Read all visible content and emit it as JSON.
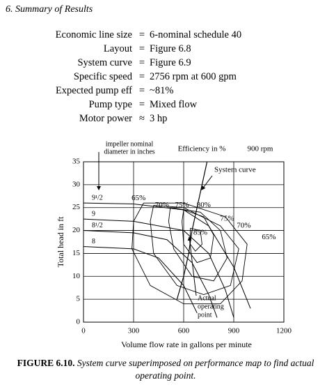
{
  "section": "6. Summary of Results",
  "summary": [
    {
      "label": "Economic line size",
      "sign": "=",
      "value": "6-nominal schedule 40"
    },
    {
      "label": "Layout",
      "sign": "=",
      "value": "Figure 6.8"
    },
    {
      "label": "System curve",
      "sign": "=",
      "value": "Figure 6.9"
    },
    {
      "label": "Specific speed",
      "sign": "=",
      "value": "2756 rpm at 600 gpm"
    },
    {
      "label": "Expected pump eff",
      "sign": "=",
      "value": "~81%"
    },
    {
      "label": "Pump type",
      "sign": "=",
      "value": "Mixed flow"
    },
    {
      "label": "Motor power",
      "sign": "≈",
      "value": "3 hp"
    }
  ],
  "chart_data": {
    "type": "line",
    "xlabel": "Volume flow rate in gallons per minute",
    "ylabel": "Total head in ft",
    "xlim": [
      0,
      1200
    ],
    "ylim": [
      0,
      35
    ],
    "xticks": [
      0,
      300,
      600,
      900,
      1200
    ],
    "yticks": [
      0,
      5,
      10,
      15,
      20,
      25,
      30,
      35
    ],
    "grid": true,
    "color": "#000000",
    "impeller_note": [
      "impeller nominal",
      "diameter in inches"
    ],
    "efficiency_note": "Efficiency in %",
    "speed_note": "900 rpm",
    "system_note": "System curve",
    "operating_note": [
      "Actual",
      "operating",
      "point"
    ],
    "series": [
      {
        "name": "9¹/2",
        "x": [
          0,
          300,
          600,
          750,
          900,
          1000
        ],
        "values": [
          26,
          25.8,
          24.5,
          21,
          12,
          3
        ]
      },
      {
        "name": "9",
        "x": [
          0,
          300,
          600,
          750,
          850,
          900
        ],
        "values": [
          22.5,
          22,
          20,
          15,
          7,
          1
        ]
      },
      {
        "name": "8¹/2",
        "x": [
          0,
          300,
          500,
          650,
          750,
          800
        ],
        "values": [
          20,
          19.5,
          18,
          13,
          6,
          1
        ]
      },
      {
        "name": "8",
        "x": [
          0,
          300,
          450,
          600,
          680
        ],
        "values": [
          16.5,
          16,
          14,
          8,
          2
        ]
      }
    ],
    "system_curve": {
      "x": [
        560,
        600,
        630,
        650,
        680,
        710,
        740
      ],
      "values": [
        5,
        10,
        15,
        20,
        25,
        30,
        35
      ]
    },
    "efficiency": [
      {
        "x": [
          360,
          600,
          850,
          980,
          950,
          820,
          600,
          400,
          290,
          300,
          360
        ],
        "values": [
          26,
          26,
          23,
          17,
          9,
          4,
          4,
          8,
          16,
          22,
          26
        ]
      },
      {
        "x": [
          420,
          600,
          820,
          930,
          880,
          720,
          560,
          420,
          400,
          420
        ],
        "values": [
          25.5,
          25,
          21,
          16,
          8,
          6,
          8,
          15,
          22,
          25.5
        ]
      },
      {
        "x": [
          520,
          700,
          820,
          860,
          780,
          650,
          540,
          510,
          520
        ],
        "values": [
          25,
          24,
          20,
          14,
          9,
          10,
          16,
          22,
          25
        ]
      },
      {
        "x": [
          600,
          720,
          780,
          760,
          680,
          600,
          590,
          600
        ],
        "values": [
          24.5,
          23,
          19,
          14,
          13,
          17,
          22,
          24.5
        ]
      },
      {
        "x": [
          640,
          700,
          710,
          670,
          640,
          640
        ],
        "values": [
          20.5,
          20,
          17,
          15.5,
          17,
          20.5
        ]
      }
    ],
    "annotations": [
      {
        "text": "65%",
        "x": 330,
        "y": 27
      },
      {
        "text": "70%",
        "x": 470,
        "y": 25.5
      },
      {
        "text": "75%",
        "x": 590,
        "y": 25.5
      },
      {
        "text": "80%",
        "x": 720,
        "y": 25.5
      },
      {
        "text": "85%",
        "x": 700,
        "y": 19.5
      },
      {
        "text": "75%",
        "x": 860,
        "y": 22.5
      },
      {
        "text": "70%",
        "x": 960,
        "y": 21
      },
      {
        "text": "65%",
        "x": 1110,
        "y": 18.5
      }
    ]
  },
  "caption": {
    "label": "FIGURE 6.10.",
    "text": "System curve superimposed on performance map to find actual operating point."
  }
}
